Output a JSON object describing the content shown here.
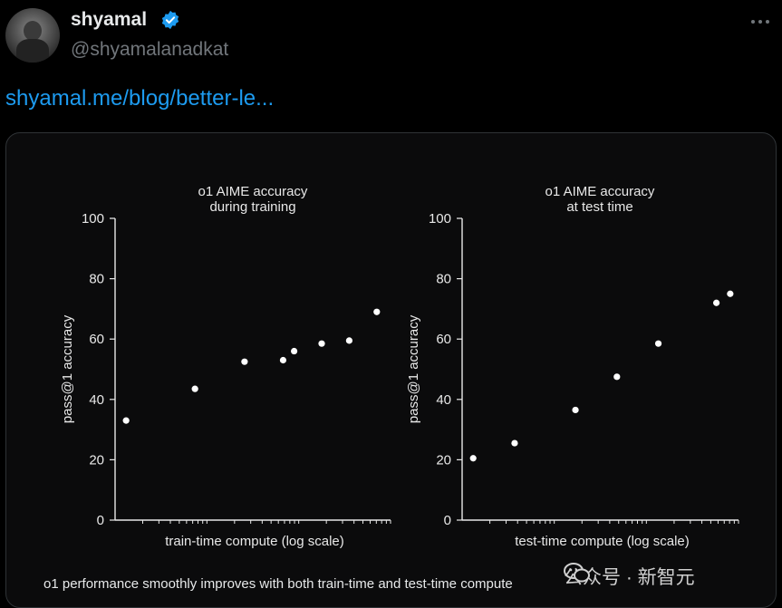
{
  "tweet": {
    "author_name": "shyamal",
    "handle": "@shyamalanadkat",
    "link_text": "shyamal.me/blog/better-le...",
    "more_icon": "more-horizontal-icon",
    "verified_color": "#1d9bf0"
  },
  "figure": {
    "caption": "o1 performance smoothly improves with both train-time and test-time compute",
    "watermark": "公众号 · 新智元"
  },
  "chart_data": [
    {
      "type": "scatter",
      "title_lines": [
        "o1 AIME accuracy",
        "during training"
      ],
      "xlabel": "train-time compute (log scale)",
      "ylabel": "pass@1 accuracy",
      "x_scale": "log",
      "ylim": [
        0,
        100
      ],
      "yticks": [
        0,
        20,
        40,
        60,
        80,
        100
      ],
      "grid": false,
      "points": [
        {
          "x": 0.04,
          "y": 33
        },
        {
          "x": 0.29,
          "y": 43.5
        },
        {
          "x": 0.47,
          "y": 52.5
        },
        {
          "x": 0.61,
          "y": 53
        },
        {
          "x": 0.65,
          "y": 56
        },
        {
          "x": 0.75,
          "y": 58.5
        },
        {
          "x": 0.85,
          "y": 59.5
        },
        {
          "x": 0.95,
          "y": 69
        }
      ]
    },
    {
      "type": "scatter",
      "title_lines": [
        "o1 AIME accuracy",
        "at test time"
      ],
      "xlabel": "test-time compute (log scale)",
      "ylabel": "pass@1 accuracy",
      "x_scale": "log",
      "ylim": [
        0,
        100
      ],
      "yticks": [
        0,
        20,
        40,
        60,
        80,
        100
      ],
      "grid": false,
      "points": [
        {
          "x": 0.04,
          "y": 20.5
        },
        {
          "x": 0.19,
          "y": 25.5
        },
        {
          "x": 0.41,
          "y": 36.5
        },
        {
          "x": 0.56,
          "y": 47.5
        },
        {
          "x": 0.71,
          "y": 58.5
        },
        {
          "x": 0.92,
          "y": 72
        },
        {
          "x": 0.97,
          "y": 75
        }
      ]
    }
  ]
}
